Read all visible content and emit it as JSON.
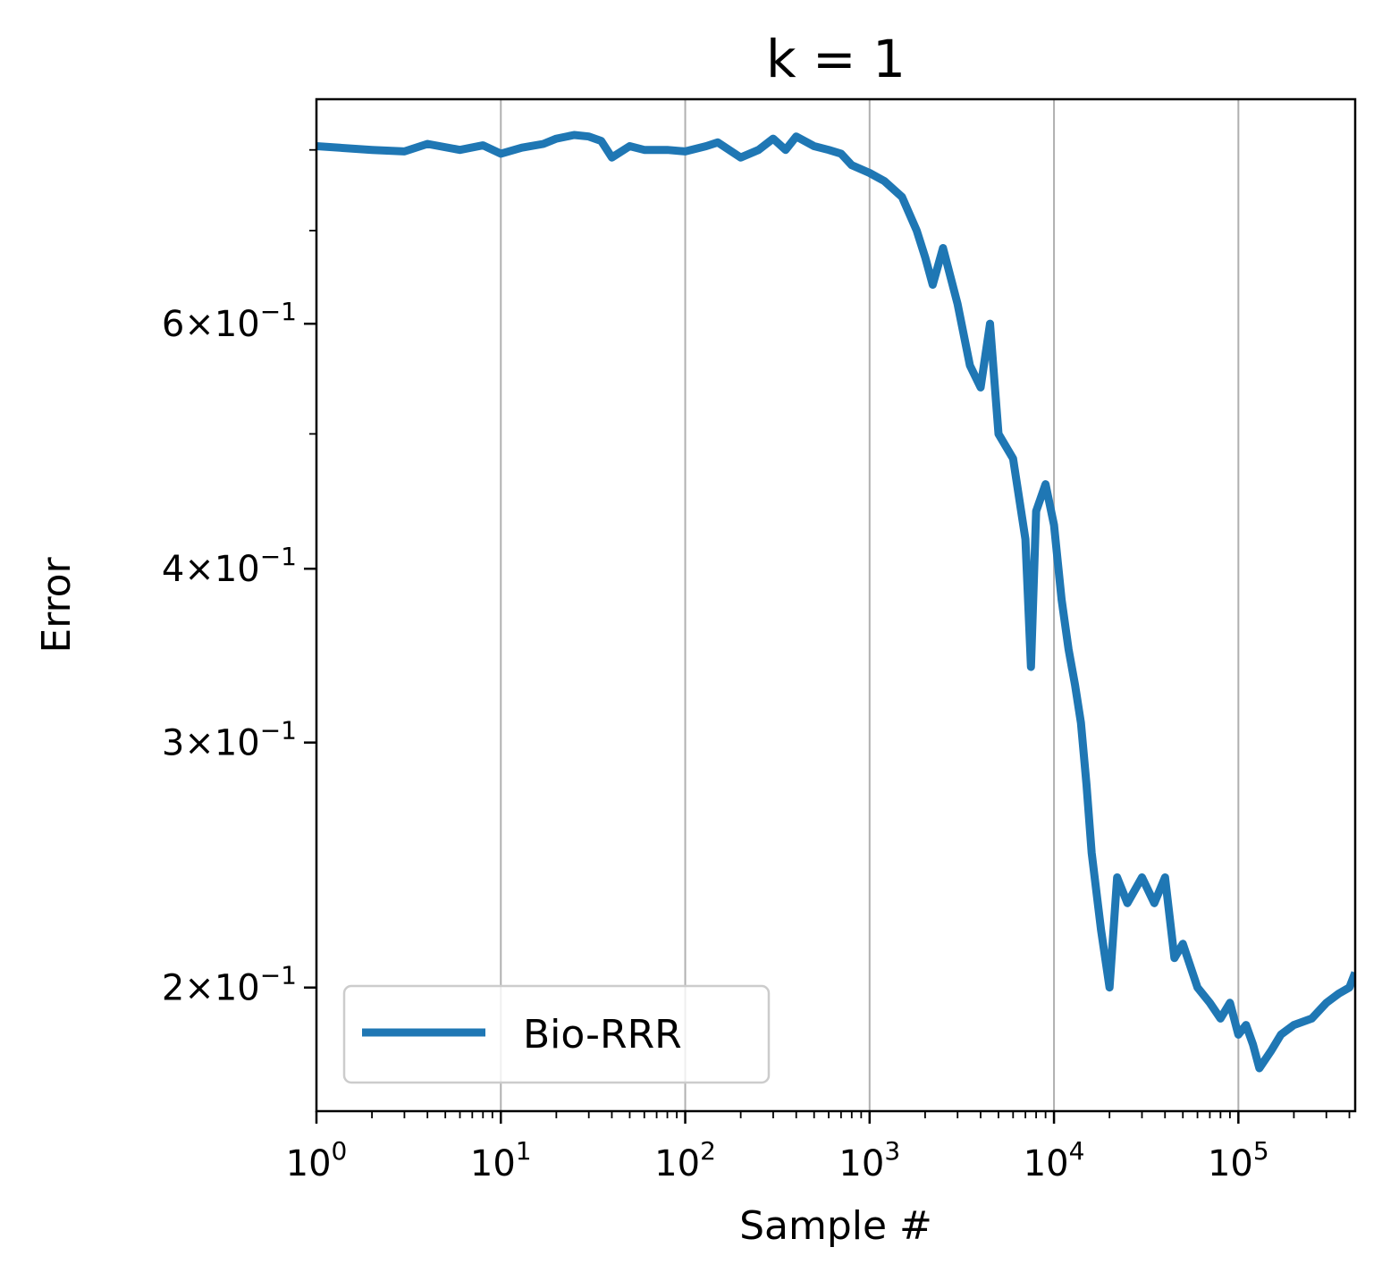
{
  "chart_data": {
    "type": "line",
    "title": "k = 1",
    "xlabel": "Sample #",
    "ylabel": "Error",
    "x_scale": "log",
    "y_scale": "log",
    "xlim": [
      1,
      430000
    ],
    "ylim": [
      0.163,
      0.87
    ],
    "grid": "x-major",
    "legend_position": "lower-left",
    "x_ticks": [
      {
        "value": 1,
        "base": "10",
        "exp": "0"
      },
      {
        "value": 10,
        "base": "10",
        "exp": "1"
      },
      {
        "value": 100,
        "base": "10",
        "exp": "2"
      },
      {
        "value": 1000,
        "base": "10",
        "exp": "3"
      },
      {
        "value": 10000,
        "base": "10",
        "exp": "4"
      },
      {
        "value": 100000,
        "base": "10",
        "exp": "5"
      }
    ],
    "y_ticks": [
      {
        "value": 0.2,
        "mant": "2",
        "times": "×",
        "base": "10",
        "exp": "−1"
      },
      {
        "value": 0.3,
        "mant": "3",
        "times": "×",
        "base": "10",
        "exp": "−1"
      },
      {
        "value": 0.4,
        "mant": "4",
        "times": "×",
        "base": "10",
        "exp": "−1"
      },
      {
        "value": 0.6,
        "mant": "6",
        "times": "×",
        "base": "10",
        "exp": "−1"
      }
    ],
    "y_minor_ticks": [
      0.5,
      0.7,
      0.8
    ],
    "series": [
      {
        "name": "Bio-RRR",
        "color": "#1f77b4",
        "x": [
          1,
          2,
          3,
          4,
          6,
          8,
          10,
          13,
          17,
          20,
          25,
          30,
          35,
          40,
          50,
          60,
          80,
          100,
          130,
          150,
          200,
          250,
          300,
          350,
          400,
          500,
          600,
          700,
          800,
          1000,
          1200,
          1500,
          1800,
          2000,
          2200,
          2500,
          3000,
          3500,
          4000,
          4500,
          5000,
          6000,
          7000,
          7500,
          8000,
          9000,
          10000,
          11000,
          12000,
          13000,
          14000,
          15000,
          16000,
          18000,
          20000,
          22000,
          25000,
          30000,
          35000,
          40000,
          45000,
          50000,
          60000,
          70000,
          80000,
          90000,
          100000,
          110000,
          120000,
          130000,
          150000,
          170000,
          200000,
          250000,
          300000,
          350000,
          400000,
          430000
        ],
        "y": [
          0.805,
          0.8,
          0.798,
          0.808,
          0.8,
          0.806,
          0.795,
          0.803,
          0.808,
          0.815,
          0.82,
          0.818,
          0.812,
          0.79,
          0.805,
          0.8,
          0.8,
          0.798,
          0.805,
          0.81,
          0.79,
          0.8,
          0.815,
          0.8,
          0.818,
          0.805,
          0.8,
          0.795,
          0.78,
          0.77,
          0.76,
          0.74,
          0.7,
          0.67,
          0.64,
          0.68,
          0.62,
          0.56,
          0.54,
          0.6,
          0.5,
          0.48,
          0.42,
          0.34,
          0.44,
          0.46,
          0.43,
          0.38,
          0.35,
          0.33,
          0.31,
          0.28,
          0.25,
          0.22,
          0.2,
          0.24,
          0.23,
          0.24,
          0.23,
          0.24,
          0.21,
          0.215,
          0.2,
          0.195,
          0.19,
          0.195,
          0.185,
          0.188,
          0.182,
          0.175,
          0.18,
          0.185,
          0.188,
          0.19,
          0.195,
          0.198,
          0.2,
          0.205
        ]
      }
    ]
  }
}
